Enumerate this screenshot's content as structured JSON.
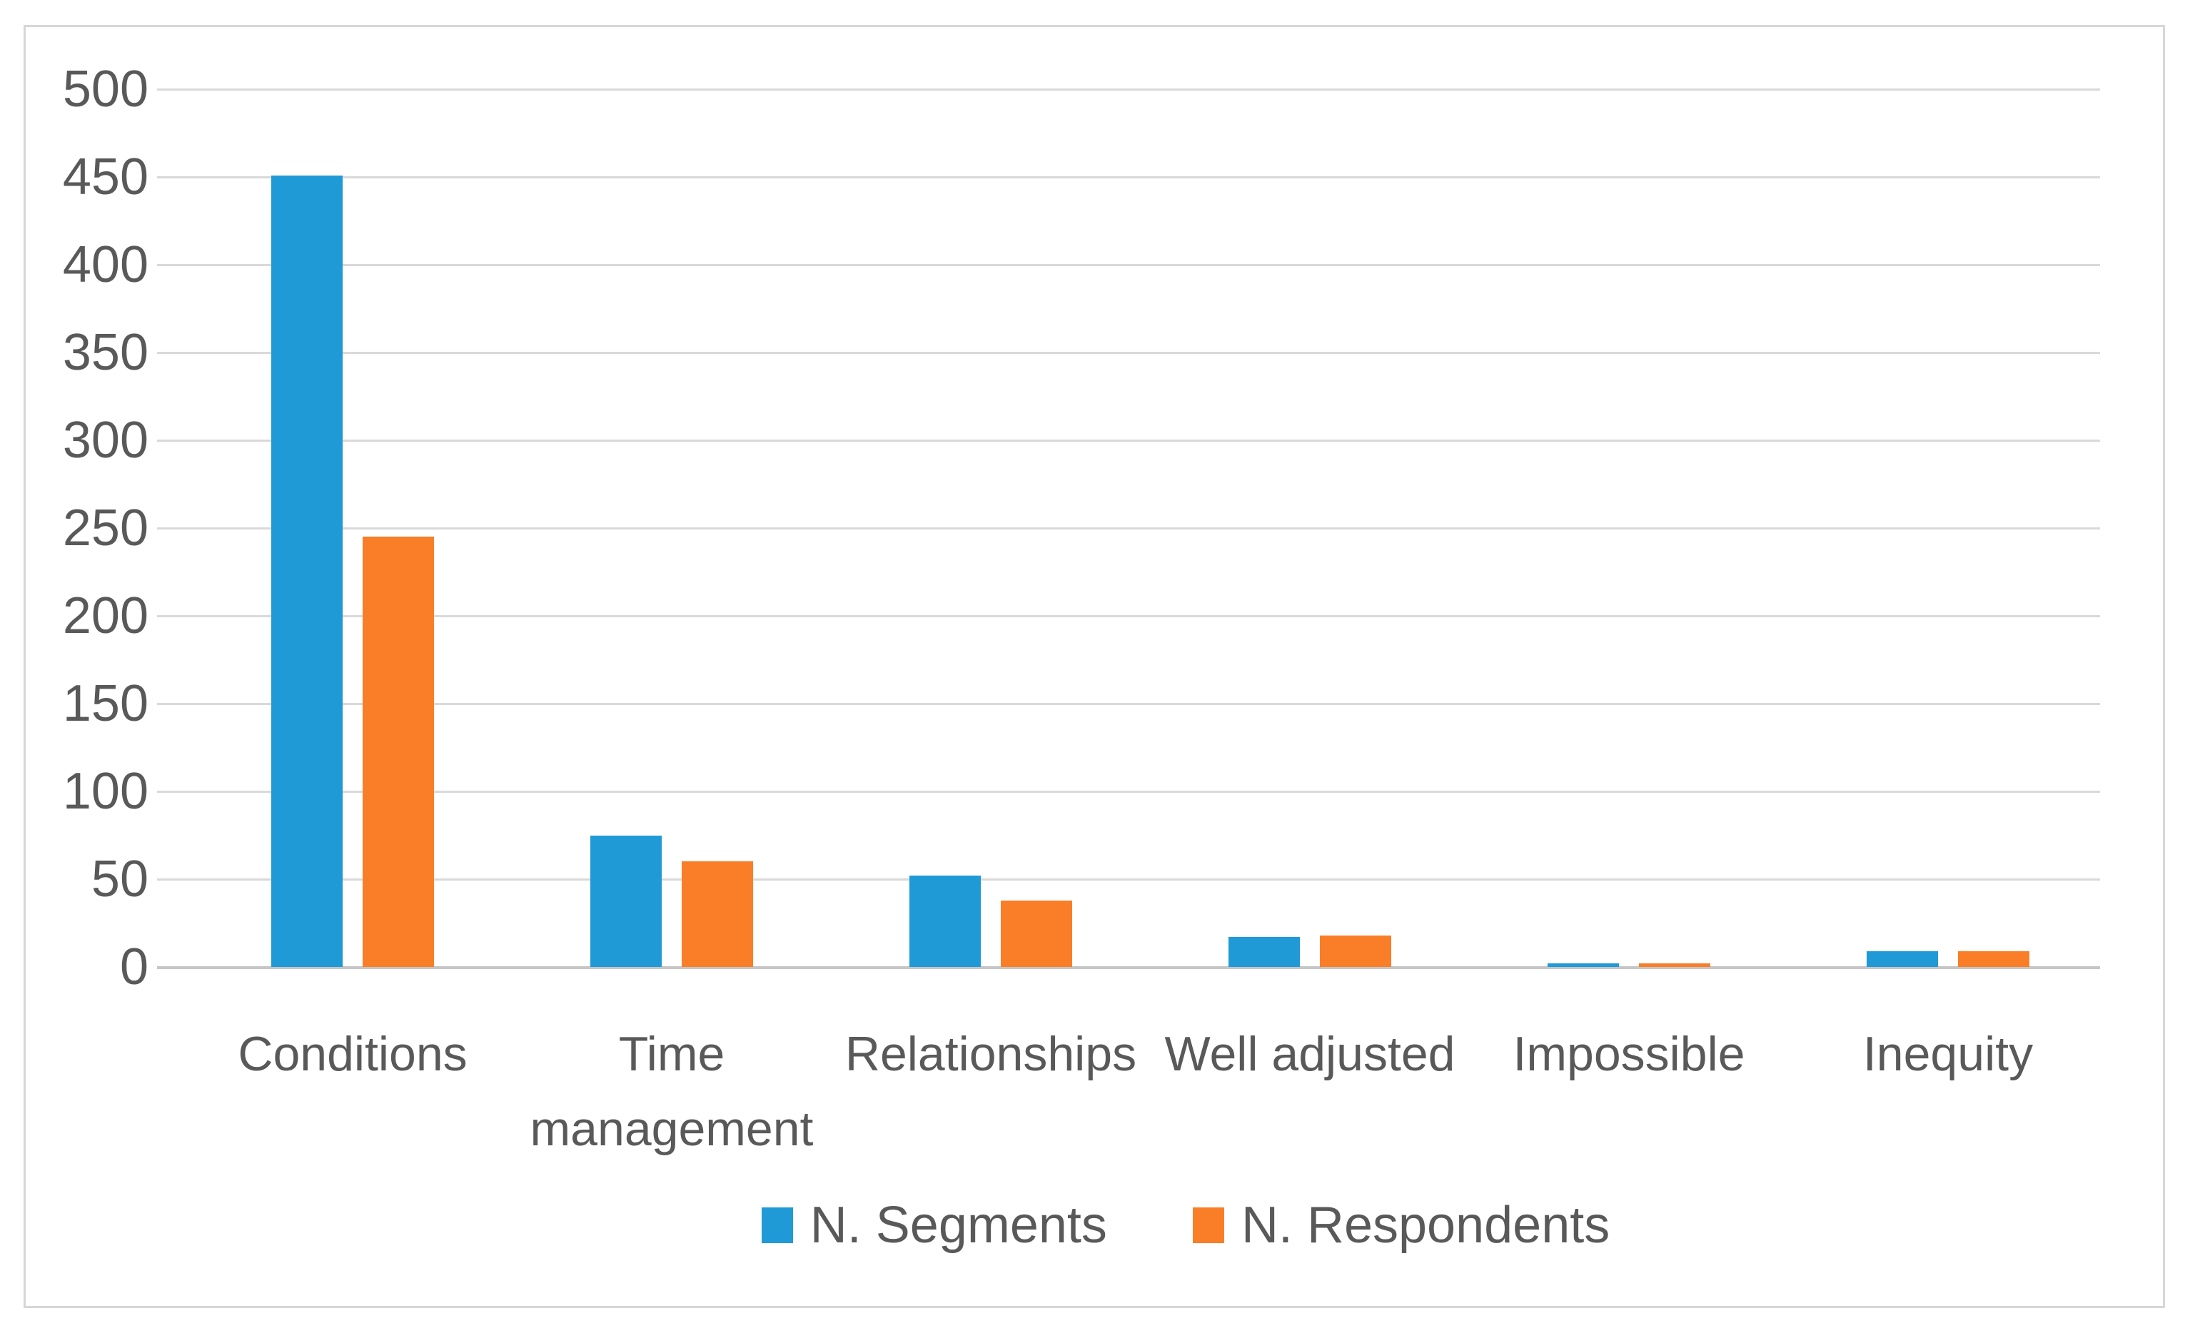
{
  "figure": {
    "background": "#ffffff",
    "frame_border_color": "#d7d7d7"
  },
  "chart_data": {
    "type": "bar",
    "title": "",
    "categories": [
      "Conditions",
      "Time management",
      "Relationships",
      "Well adjusted",
      "Impossible",
      "Inequity"
    ],
    "series": [
      {
        "name": "N. Segments",
        "color": "#1F9AD7",
        "values": [
          451,
          75,
          52,
          17,
          2,
          9
        ]
      },
      {
        "name": "N. Respondents",
        "color": "#F97E27",
        "values": [
          245,
          60,
          38,
          18,
          2,
          9
        ]
      }
    ],
    "ylim": [
      0,
      500
    ],
    "ytick_step": 50,
    "ytick_labels": [
      "0",
      "50",
      "100",
      "150",
      "200",
      "250",
      "300",
      "350",
      "400",
      "450",
      "500"
    ],
    "grid": true,
    "legend_position": "bottom",
    "gridline_color": "#d9d9d9",
    "axis_line_color": "#c6c6c6",
    "text_color": "#595959"
  }
}
